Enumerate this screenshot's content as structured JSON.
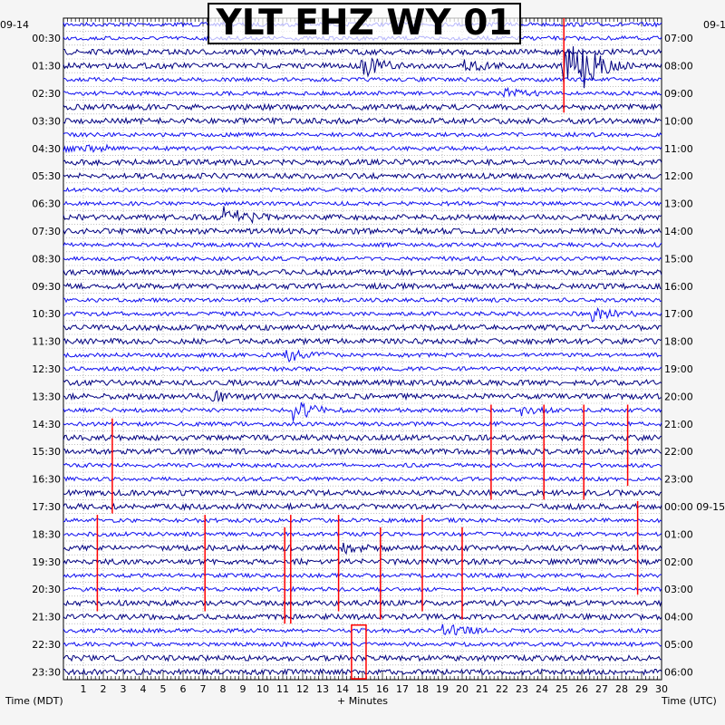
{
  "chart_data": {
    "type": "line",
    "title": "YLT EHZ WY 01",
    "xlabel": "+ Minutes",
    "left_axis_label": "Time (MDT)",
    "right_axis_label": "Time (UTC)",
    "left_date": "09-14",
    "right_date": "09-1",
    "xlim": [
      0,
      30
    ],
    "x_ticks": [
      "1",
      "2",
      "3",
      "4",
      "5",
      "6",
      "7",
      "8",
      "9",
      "10",
      "11",
      "12",
      "13",
      "14",
      "15",
      "16",
      "17",
      "18",
      "19",
      "20",
      "21",
      "22",
      "23",
      "24",
      "25",
      "26",
      "27",
      "28",
      "29",
      "30"
    ],
    "row_minutes": 15,
    "rows": 48,
    "left_labels": [
      "00:30",
      "01:30",
      "02:30",
      "03:30",
      "04:30",
      "05:30",
      "06:30",
      "07:30",
      "08:30",
      "09:30",
      "10:30",
      "11:30",
      "12:30",
      "13:30",
      "14:30",
      "15:30",
      "16:30",
      "17:30",
      "18:30",
      "19:30",
      "20:30",
      "21:30",
      "22:30",
      "23:30"
    ],
    "right_labels": [
      "07:00",
      "08:00",
      "09:00",
      "10:00",
      "11:00",
      "12:00",
      "13:00",
      "14:00",
      "15:00",
      "16:00",
      "17:00",
      "18:00",
      "19:00",
      "20:00",
      "21:00",
      "22:00",
      "23:00",
      "00:00 09-15",
      "01:00",
      "02:00",
      "03:00",
      "04:00",
      "05:00",
      "06:00"
    ],
    "trace_colors": [
      "#1010f0",
      "#1010f0",
      "#000080",
      "#000080"
    ],
    "marker_color": "#ff0000",
    "events": [
      {
        "row": 3,
        "minute": 15.0,
        "amp": 12
      },
      {
        "row": 3,
        "minute": 20.2,
        "amp": 7
      },
      {
        "row": 3,
        "minute": 25.1,
        "amp": 22
      },
      {
        "row": 3,
        "minute": 25.6,
        "amp": 12
      },
      {
        "row": 3,
        "minute": 26.1,
        "amp": 10
      },
      {
        "row": 5,
        "minute": 22.0,
        "amp": 6
      },
      {
        "row": 14,
        "minute": 8.1,
        "amp": 16
      },
      {
        "row": 24,
        "minute": 11.1,
        "amp": 10
      },
      {
        "row": 28,
        "minute": 11.6,
        "amp": 11
      },
      {
        "row": 28,
        "minute": 23.0,
        "amp": 5
      },
      {
        "row": 44,
        "minute": 19.1,
        "amp": 8
      },
      {
        "row": 21,
        "minute": 26.6,
        "amp": 8
      },
      {
        "row": 38,
        "minute": 14.0,
        "amp": 5
      },
      {
        "row": 27,
        "minute": 7.5,
        "amp": 5
      }
    ],
    "markers": [
      {
        "minute": 2.45,
        "row_start": 28.6,
        "row_end": 35.5
      },
      {
        "minute": 21.45,
        "row_start": 27.6,
        "row_end": 34.5
      },
      {
        "minute": 24.1,
        "row_start": 27.6,
        "row_end": 34.5
      },
      {
        "minute": 26.1,
        "row_start": 27.6,
        "row_end": 34.5
      },
      {
        "minute": 28.3,
        "row_start": 27.6,
        "row_end": 33.5
      },
      {
        "minute": 1.7,
        "row_start": 35.6,
        "row_end": 42.6
      },
      {
        "minute": 7.1,
        "row_start": 35.6,
        "row_end": 42.6
      },
      {
        "minute": 11.1,
        "row_start": 36.5,
        "row_end": 43.5
      },
      {
        "minute": 11.4,
        "row_start": 35.6,
        "row_end": 43.5
      },
      {
        "minute": 13.8,
        "row_start": 35.6,
        "row_end": 42.6
      },
      {
        "minute": 15.9,
        "row_start": 36.5,
        "row_end": 43.2
      },
      {
        "minute": 18.0,
        "row_start": 35.6,
        "row_end": 42.6
      },
      {
        "minute": 20.0,
        "row_start": 36.5,
        "row_end": 43.2
      },
      {
        "minute": 28.8,
        "row_start": 34.6,
        "row_end": 41.4
      },
      {
        "minute": 25.1,
        "row_start": -0.5,
        "row_end": 6.4
      }
    ],
    "highlight_box": {
      "minute_start": 14.45,
      "minute_end": 15.18,
      "row_start": 43.6,
      "row_end": 47.5
    }
  }
}
